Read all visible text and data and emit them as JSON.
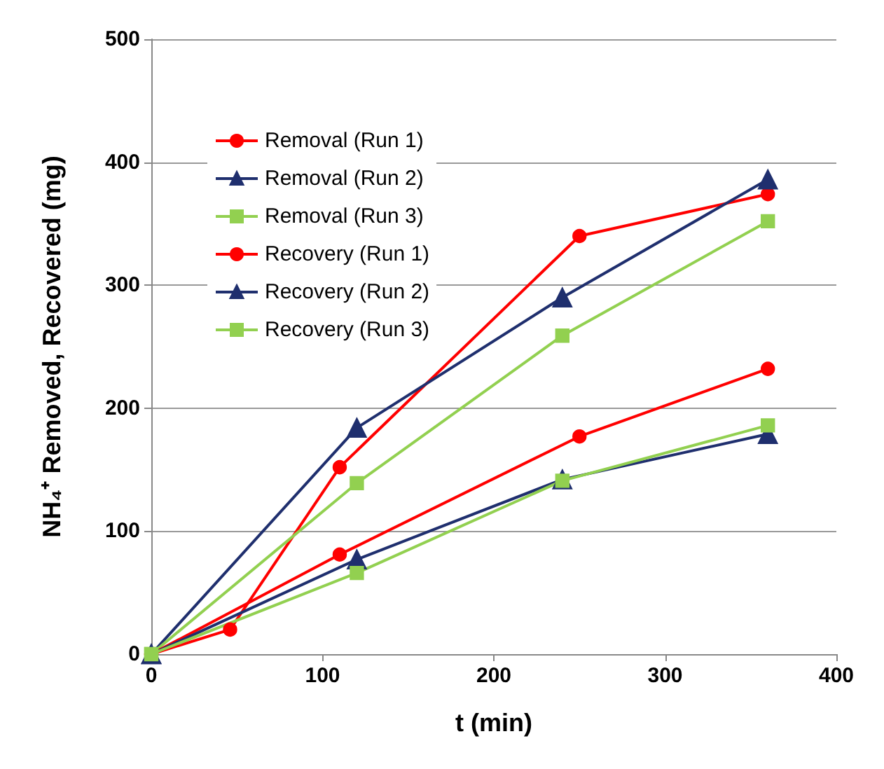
{
  "chart_data": {
    "type": "line",
    "xlabel": "t (min)",
    "ylabel": "NH₄⁺ Removed, Recovered (mg)",
    "xlim": [
      0,
      400
    ],
    "xticks": [
      0,
      100,
      200,
      300,
      400
    ],
    "ylim": [
      0,
      500
    ],
    "yticks": [
      0,
      100,
      200,
      300,
      400,
      500
    ],
    "grid": "y",
    "legend": "top left",
    "series": [
      {
        "name": "Removal (Run 1)",
        "color": "#ff0000",
        "marker": "circle",
        "x": [
          0,
          46,
          110,
          250,
          360
        ],
        "values": [
          0,
          20,
          152,
          340,
          374
        ]
      },
      {
        "name": "Removal (Run 2)",
        "color": "#1f2f6e",
        "marker": "triangle",
        "x": [
          0,
          120,
          240,
          360
        ],
        "values": [
          0,
          184,
          290,
          386
        ]
      },
      {
        "name": "Removal (Run 3)",
        "color": "#92d050",
        "marker": "square",
        "x": [
          0,
          120,
          240,
          360
        ],
        "values": [
          0,
          139,
          259,
          352
        ]
      },
      {
        "name": "Recovery (Run 1)",
        "color": "#ff0000",
        "marker": "circle",
        "x": [
          0,
          110,
          250,
          360
        ],
        "values": [
          0,
          81,
          177,
          232
        ]
      },
      {
        "name": "Recovery (Run 2)",
        "color": "#1f2f6e",
        "marker": "triangle",
        "x": [
          0,
          120,
          240,
          360
        ],
        "values": [
          0,
          77,
          142,
          179
        ]
      },
      {
        "name": "Recovery (Run 3)",
        "color": "#92d050",
        "marker": "square",
        "x": [
          0,
          120,
          240,
          360
        ],
        "values": [
          0,
          66,
          141,
          186
        ]
      }
    ]
  }
}
